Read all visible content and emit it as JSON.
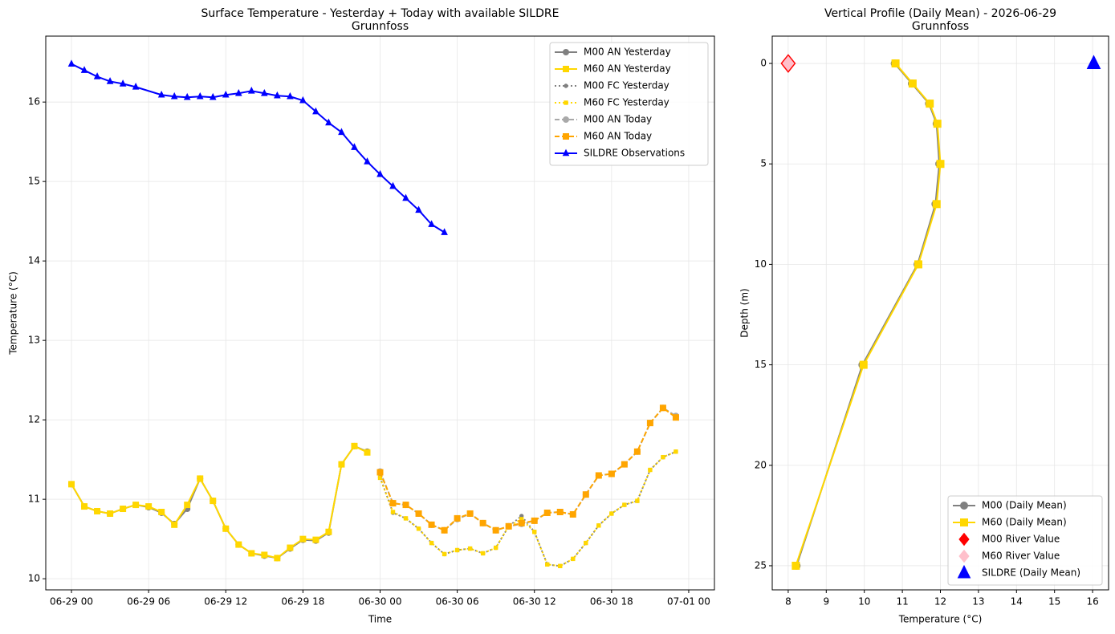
{
  "chart_data": [
    {
      "type": "line",
      "title": "Surface Temperature - Yesterday + Today with available SILDRE",
      "subtitle": "Grunnfoss",
      "xlabel": "Time",
      "ylabel": "Temperature (°C)",
      "xlim": [
        "06-28 22",
        "07-01 02"
      ],
      "xticks": [
        "06-29 00",
        "06-29 06",
        "06-29 12",
        "06-29 18",
        "06-30 00",
        "06-30 06",
        "06-30 12",
        "06-30 18",
        "07-01 00"
      ],
      "ylim": [
        9.86,
        16.83
      ],
      "yticks": [
        10,
        11,
        12,
        13,
        14,
        15,
        16
      ],
      "grid": true,
      "legend": "upper right",
      "series": [
        {
          "name": "M00 AN Yesterday",
          "color": "#808080",
          "dash": "solid",
          "marker": "circle",
          "marker_size": 3.5,
          "x": [
            "06-29 00",
            "06-29 01",
            "06-29 02",
            "06-29 03",
            "06-29 04",
            "06-29 05",
            "06-29 06",
            "06-29 07",
            "06-29 08",
            "06-29 09",
            "06-29 10",
            "06-29 11",
            "06-29 12",
            "06-29 13",
            "06-29 14",
            "06-29 15",
            "06-29 16",
            "06-29 17",
            "06-29 18",
            "06-29 19",
            "06-29 20",
            "06-29 21",
            "06-29 22",
            "06-29 23"
          ],
          "values": [
            11.19,
            10.91,
            10.85,
            10.82,
            10.88,
            10.93,
            10.9,
            10.83,
            10.69,
            10.88,
            11.26,
            10.98,
            10.63,
            10.43,
            10.32,
            10.29,
            10.26,
            10.38,
            10.49,
            10.48,
            10.58,
            11.44,
            11.67,
            11.6
          ]
        },
        {
          "name": "M60 AN Yesterday",
          "color": "#ffd700",
          "dash": "solid",
          "marker": "square",
          "marker_size": 3.5,
          "x": [
            "06-29 00",
            "06-29 01",
            "06-29 02",
            "06-29 03",
            "06-29 04",
            "06-29 05",
            "06-29 06",
            "06-29 07",
            "06-29 08",
            "06-29 09",
            "06-29 10",
            "06-29 11",
            "06-29 12",
            "06-29 13",
            "06-29 14",
            "06-29 15",
            "06-29 16",
            "06-29 17",
            "06-29 18",
            "06-29 19",
            "06-29 20",
            "06-29 21",
            "06-29 22",
            "06-29 23"
          ],
          "values": [
            11.19,
            10.91,
            10.85,
            10.82,
            10.88,
            10.93,
            10.91,
            10.84,
            10.68,
            10.93,
            11.26,
            10.98,
            10.63,
            10.43,
            10.32,
            10.3,
            10.26,
            10.39,
            10.5,
            10.49,
            10.59,
            11.44,
            11.67,
            11.59
          ]
        },
        {
          "name": "M00 FC Yesterday",
          "color": "#808080",
          "dash": "dotted",
          "marker": "circle",
          "marker_size": 2.2,
          "x": [
            "06-30 00",
            "06-30 01",
            "06-30 02",
            "06-30 03",
            "06-30 04",
            "06-30 05",
            "06-30 06",
            "06-30 07",
            "06-30 08",
            "06-30 09",
            "06-30 10",
            "06-30 11",
            "06-30 12",
            "06-30 13",
            "06-30 14",
            "06-30 15",
            "06-30 16",
            "06-30 17",
            "06-30 18",
            "06-30 19",
            "06-30 20",
            "06-30 21",
            "06-30 22",
            "06-30 23"
          ],
          "values": [
            11.28,
            10.83,
            10.76,
            10.63,
            10.45,
            10.31,
            10.36,
            10.38,
            10.32,
            10.39,
            10.66,
            10.79,
            10.59,
            10.18,
            10.16,
            10.25,
            10.45,
            10.67,
            10.82,
            10.93,
            10.98,
            11.37,
            11.53,
            11.6
          ]
        },
        {
          "name": "M60 FC Yesterday",
          "color": "#ffd700",
          "dash": "dotted",
          "marker": "square",
          "marker_size": 2.2,
          "x": [
            "06-30 00",
            "06-30 01",
            "06-30 02",
            "06-30 03",
            "06-30 04",
            "06-30 05",
            "06-30 06",
            "06-30 07",
            "06-30 08",
            "06-30 09",
            "06-30 10",
            "06-30 11",
            "06-30 12",
            "06-30 13",
            "06-30 14",
            "06-30 15",
            "06-30 16",
            "06-30 17",
            "06-30 18",
            "06-30 19",
            "06-30 20",
            "06-30 21",
            "06-30 22",
            "06-30 23"
          ],
          "values": [
            11.27,
            10.84,
            10.76,
            10.63,
            10.45,
            10.31,
            10.36,
            10.38,
            10.32,
            10.39,
            10.66,
            10.75,
            10.59,
            10.18,
            10.16,
            10.25,
            10.45,
            10.67,
            10.82,
            10.93,
            10.98,
            11.37,
            11.53,
            11.6
          ]
        },
        {
          "name": "M00 AN Today",
          "color": "#a9a9a9",
          "dash": "dashed",
          "marker": "circle",
          "marker_size": 3.5,
          "x": [
            "06-30 00",
            "06-30 01",
            "06-30 02",
            "06-30 03",
            "06-30 04",
            "06-30 05",
            "06-30 06",
            "06-30 07",
            "06-30 08",
            "06-30 09",
            "06-30 10",
            "06-30 11",
            "06-30 12",
            "06-30 13",
            "06-30 14",
            "06-30 15",
            "06-30 16",
            "06-30 17",
            "06-30 18",
            "06-30 19",
            "06-30 20",
            "06-30 21",
            "06-30 22",
            "06-30 23"
          ],
          "values": [
            11.35,
            10.95,
            10.93,
            10.82,
            10.68,
            10.61,
            10.75,
            10.82,
            10.7,
            10.61,
            10.66,
            10.69,
            10.73,
            10.83,
            10.84,
            10.81,
            11.06,
            11.3,
            11.32,
            11.44,
            11.6,
            11.96,
            12.15,
            12.05
          ]
        },
        {
          "name": "M60 AN Today",
          "color": "#ffa500",
          "dash": "dashed",
          "marker": "square",
          "marker_size": 3.5,
          "x": [
            "06-30 00",
            "06-30 01",
            "06-30 02",
            "06-30 03",
            "06-30 04",
            "06-30 05",
            "06-30 06",
            "06-30 07",
            "06-30 08",
            "06-30 09",
            "06-30 10",
            "06-30 11",
            "06-30 12",
            "06-30 13",
            "06-30 14",
            "06-30 15",
            "06-30 16",
            "06-30 17",
            "06-30 18",
            "06-30 19",
            "06-30 20",
            "06-30 21",
            "06-30 22",
            "06-30 23"
          ],
          "values": [
            11.34,
            10.95,
            10.93,
            10.82,
            10.68,
            10.61,
            10.76,
            10.82,
            10.7,
            10.61,
            10.66,
            10.7,
            10.73,
            10.83,
            10.84,
            10.81,
            11.06,
            11.3,
            11.32,
            11.44,
            11.6,
            11.96,
            12.15,
            12.03
          ]
        },
        {
          "name": "SILDRE Observations",
          "color": "#0000ff",
          "dash": "solid",
          "marker": "triangle",
          "marker_size": 3.5,
          "x": [
            "06-29 00",
            "06-29 01",
            "06-29 02",
            "06-29 03",
            "06-29 04",
            "06-29 05",
            "06-29 07",
            "06-29 08",
            "06-29 09",
            "06-29 10",
            "06-29 11",
            "06-29 12",
            "06-29 13",
            "06-29 14",
            "06-29 15",
            "06-29 16",
            "06-29 17",
            "06-29 18",
            "06-29 19",
            "06-29 20",
            "06-29 21",
            "06-29 22",
            "06-29 23",
            "06-30 00",
            "06-30 01",
            "06-30 02",
            "06-30 03",
            "06-30 04",
            "06-30 05"
          ],
          "values": [
            16.48,
            16.4,
            16.32,
            16.26,
            16.23,
            16.19,
            16.09,
            16.07,
            16.06,
            16.07,
            16.06,
            16.09,
            16.11,
            16.14,
            16.11,
            16.08,
            16.07,
            16.02,
            15.88,
            15.74,
            15.62,
            15.43,
            15.25,
            15.09,
            14.94,
            14.79,
            14.64,
            14.46,
            14.36
          ]
        }
      ]
    },
    {
      "type": "profile",
      "title": "Vertical Profile (Daily Mean) - 2026-06-29",
      "subtitle": "Grunnfoss",
      "xlabel": "Temperature (°C)",
      "ylabel": "Depth (m)",
      "xlim": [
        7.58,
        16.42
      ],
      "xticks": [
        8,
        9,
        10,
        11,
        12,
        13,
        14,
        15,
        16
      ],
      "ylim": [
        -1.36,
        26.2
      ],
      "invert_y": true,
      "yticks": [
        0,
        5,
        10,
        15,
        20,
        25
      ],
      "grid": true,
      "legend": "lower right",
      "series": [
        {
          "name": "M00 (Daily Mean)",
          "color": "#808080",
          "line": true,
          "marker": "circle",
          "marker_size": 4.5,
          "depths": [
            0,
            1,
            2,
            3,
            5,
            7,
            10,
            15,
            25
          ],
          "values": [
            10.8,
            11.25,
            11.7,
            11.9,
            11.97,
            11.87,
            11.4,
            9.95,
            8.22
          ]
        },
        {
          "name": "M60 (Daily Mean)",
          "color": "#ffd700",
          "line": true,
          "marker": "square",
          "marker_size": 4.5,
          "depths": [
            0,
            1,
            2,
            3,
            5,
            7,
            10,
            15,
            25
          ],
          "values": [
            10.82,
            11.27,
            11.72,
            11.92,
            12.0,
            11.9,
            11.42,
            9.98,
            8.2
          ]
        },
        {
          "name": "M00 River Value",
          "color": "#ff0000",
          "line": false,
          "marker": "diamond",
          "marker_size": 11,
          "depths": [
            0
          ],
          "values": [
            8.0
          ]
        },
        {
          "name": "M60 River Value",
          "color": "#ffc0cb",
          "line": false,
          "marker": "diamond",
          "marker_size": 9.5,
          "depths": [
            0
          ],
          "values": [
            8.0
          ]
        },
        {
          "name": "SILDRE (Daily Mean)",
          "color": "#0000ff",
          "line": false,
          "marker": "triangle",
          "marker_size": 8,
          "depths": [
            0
          ],
          "values": [
            16.03
          ]
        }
      ]
    }
  ]
}
